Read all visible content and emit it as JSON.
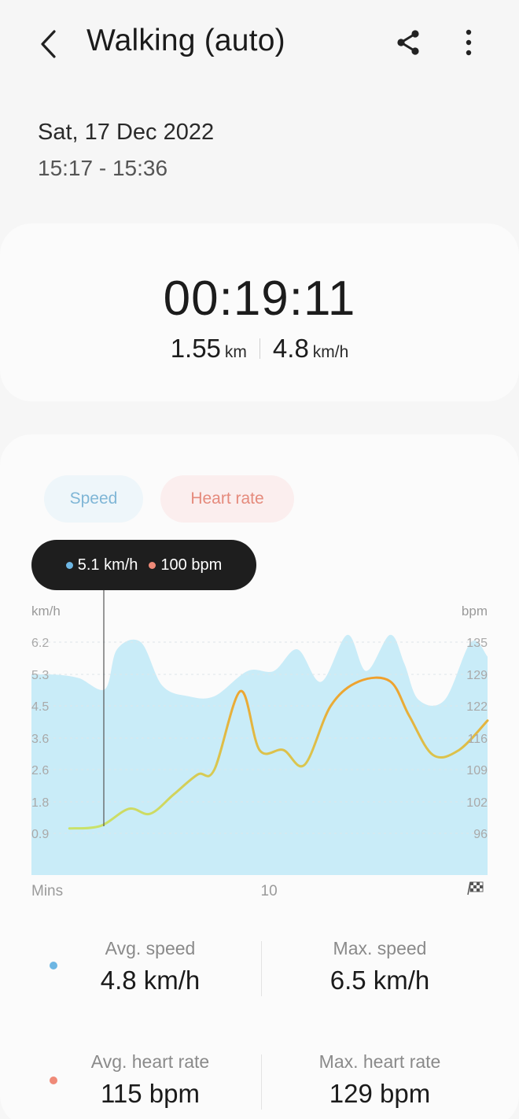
{
  "header": {
    "title": "Walking (auto)",
    "back_icon": "chevron-left-icon",
    "share_icon": "share-icon",
    "more_icon": "more-vertical-icon"
  },
  "session": {
    "date": "Sat, 17 Dec 2022",
    "time_range": "15:17 - 15:36"
  },
  "summary": {
    "duration": "00:19:11",
    "distance_value": "1.55",
    "distance_unit": "km",
    "speed_value": "4.8",
    "speed_unit": "km/h"
  },
  "tabs": [
    {
      "label": "Speed",
      "color": "#7fb6d6"
    },
    {
      "label": "Heart rate",
      "color": "#e58a7c"
    }
  ],
  "tooltip": {
    "speed": "5.1 km/h",
    "heart_rate": "100 bpm"
  },
  "colors": {
    "speed": "#6db6e3",
    "speed_fill": "#c9ecf8",
    "heart_rate": "#ef8a78",
    "hr_line_low": "#c9e26a",
    "hr_line_high": "#f0a02c"
  },
  "chart_data": {
    "type": "area",
    "left_unit": "km/h",
    "right_unit": "bpm",
    "x_label": "Mins",
    "x_ticks": [
      "10"
    ],
    "end_icon": "finish-flag-icon",
    "left_ticks": [
      "6.2",
      "5.3",
      "4.5",
      "3.6",
      "2.6",
      "1.8",
      "0.9"
    ],
    "right_ticks": [
      "135",
      "129",
      "122",
      "116",
      "109",
      "102",
      "96"
    ],
    "xlim": [
      0,
      19.2
    ],
    "series": [
      {
        "name": "Speed",
        "axis": "left",
        "x": [
          0,
          1,
          2,
          3.1,
          3.6,
          4.6,
          5.5,
          6.6,
          7.7,
          9.1,
          10.2,
          11.2,
          12.2,
          13.3,
          14.1,
          15.1,
          15.7,
          16.3,
          17.4,
          18.5,
          19.2
        ],
        "values": [
          5.3,
          5.3,
          5.2,
          4.9,
          6.0,
          6.2,
          5.0,
          4.7,
          4.7,
          5.4,
          5.4,
          6.0,
          5.1,
          6.4,
          5.4,
          6.4,
          5.6,
          4.6,
          4.6,
          6.2,
          5.8
        ]
      },
      {
        "name": "Heart rate",
        "axis": "right",
        "x": [
          1.6,
          2.9,
          4.1,
          5.0,
          6.0,
          7.0,
          7.7,
          8.8,
          9.6,
          10.6,
          11.5,
          12.6,
          13.8,
          15.1,
          15.9,
          16.9,
          18.0,
          19.2
        ],
        "values": [
          97,
          97.5,
          101,
          100,
          104,
          108,
          109,
          125,
          113,
          113,
          110,
          122,
          127,
          127,
          120,
          112,
          113,
          119
        ]
      }
    ]
  },
  "metrics": [
    {
      "label": "Avg. speed",
      "value": "4.8 km/h",
      "dot": "#6db6e3"
    },
    {
      "label": "Max. speed",
      "value": "6.5 km/h"
    },
    {
      "label": "Avg. heart rate",
      "value": "115 bpm",
      "dot": "#ef8a78"
    },
    {
      "label": "Max. heart rate",
      "value": "129 bpm"
    }
  ]
}
